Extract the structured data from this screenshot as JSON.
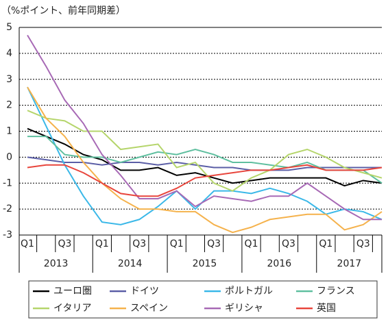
{
  "chart_data": {
    "type": "line",
    "title": "（%ポイント、前年同期差）",
    "categories": [
      "Q1",
      null,
      "Q3",
      null,
      "Q1",
      null,
      "Q3",
      null,
      "Q1",
      null,
      "Q3",
      null,
      "Q1",
      null,
      "Q3",
      null,
      "Q1",
      null,
      "Q3",
      null
    ],
    "years": [
      "2013",
      "2014",
      "2015",
      "2016",
      "2017"
    ],
    "ylim": [
      -3,
      5
    ],
    "yticks": [
      -3,
      -2,
      -1,
      0,
      1,
      2,
      3,
      4,
      5
    ],
    "grid": true,
    "series": [
      {
        "name": "ユーロ圏",
        "color": "#000000",
        "values": [
          1.1,
          0.8,
          0.5,
          0.1,
          -0.1,
          -0.5,
          -0.5,
          -0.4,
          -0.7,
          -0.6,
          -0.8,
          -1.0,
          -0.9,
          -0.8,
          -0.8,
          -0.8,
          -0.8,
          -1.1,
          -0.9,
          -1.0
        ]
      },
      {
        "name": "ドイツ",
        "color": "#5b5ea6",
        "values": [
          0,
          -0.1,
          -0.2,
          -0.2,
          -0.3,
          -0.2,
          -0.2,
          -0.3,
          -0.2,
          -0.3,
          -0.4,
          -0.4,
          -0.5,
          -0.5,
          -0.5,
          -0.4,
          -0.4,
          -0.4,
          -0.4,
          -0.4
        ]
      },
      {
        "name": "ポルトガル",
        "color": "#3ab8e8",
        "values": [
          2.7,
          1.2,
          -0.3,
          -1.5,
          -2.5,
          -2.6,
          -2.4,
          -1.9,
          -1.3,
          -2.0,
          -1.3,
          -1.3,
          -1.4,
          -1.2,
          -1.4,
          -1.7,
          -2.2,
          -2.0,
          -2.1,
          -2.4
        ]
      },
      {
        "name": "フランス",
        "color": "#5fbf9f",
        "values": [
          0.8,
          0.8,
          0.1,
          0,
          0,
          -0.2,
          0,
          0.2,
          0.1,
          0.3,
          0.1,
          -0.2,
          -0.2,
          -0.3,
          -0.4,
          -0.2,
          -0.5,
          -0.5,
          -0.5,
          -1.0
        ]
      },
      {
        "name": "イタリア",
        "color": "#b5d56b",
        "values": [
          1.8,
          1.5,
          1.4,
          1.0,
          1.0,
          0.3,
          0.4,
          0.5,
          -0.4,
          -0.2,
          -1.0,
          -1.3,
          -0.8,
          -0.5,
          0.1,
          0.3,
          0,
          -0.4,
          -0.6,
          -0.8
        ]
      },
      {
        "name": "スペイン",
        "color": "#f5b24c",
        "values": [
          2.7,
          1.5,
          0.8,
          -0.2,
          -1.0,
          -1.6,
          -2.0,
          -2.0,
          -2.1,
          -2.1,
          -2.6,
          -2.9,
          -2.7,
          -2.4,
          -2.3,
          -2.2,
          -2.2,
          -2.8,
          -2.6,
          -2.1
        ]
      },
      {
        "name": "ギリシャ",
        "color": "#a769b5",
        "values": [
          4.7,
          3.5,
          2.2,
          1.3,
          0.1,
          -0.7,
          -1.6,
          -1.6,
          -1.3,
          -1.9,
          -1.5,
          -1.6,
          -1.7,
          -1.5,
          -1.5,
          -1.0,
          -1.5,
          -2.0,
          -2.4,
          -2.4
        ]
      },
      {
        "name": "英国",
        "color": "#e8453c",
        "values": [
          -0.4,
          -0.3,
          -0.3,
          -0.6,
          -1.0,
          -1.4,
          -1.5,
          -1.5,
          -1.2,
          -0.8,
          -0.7,
          -0.6,
          -0.5,
          -0.5,
          -0.4,
          -0.3,
          -0.5,
          -0.5,
          -0.5,
          -0.4
        ]
      }
    ]
  }
}
